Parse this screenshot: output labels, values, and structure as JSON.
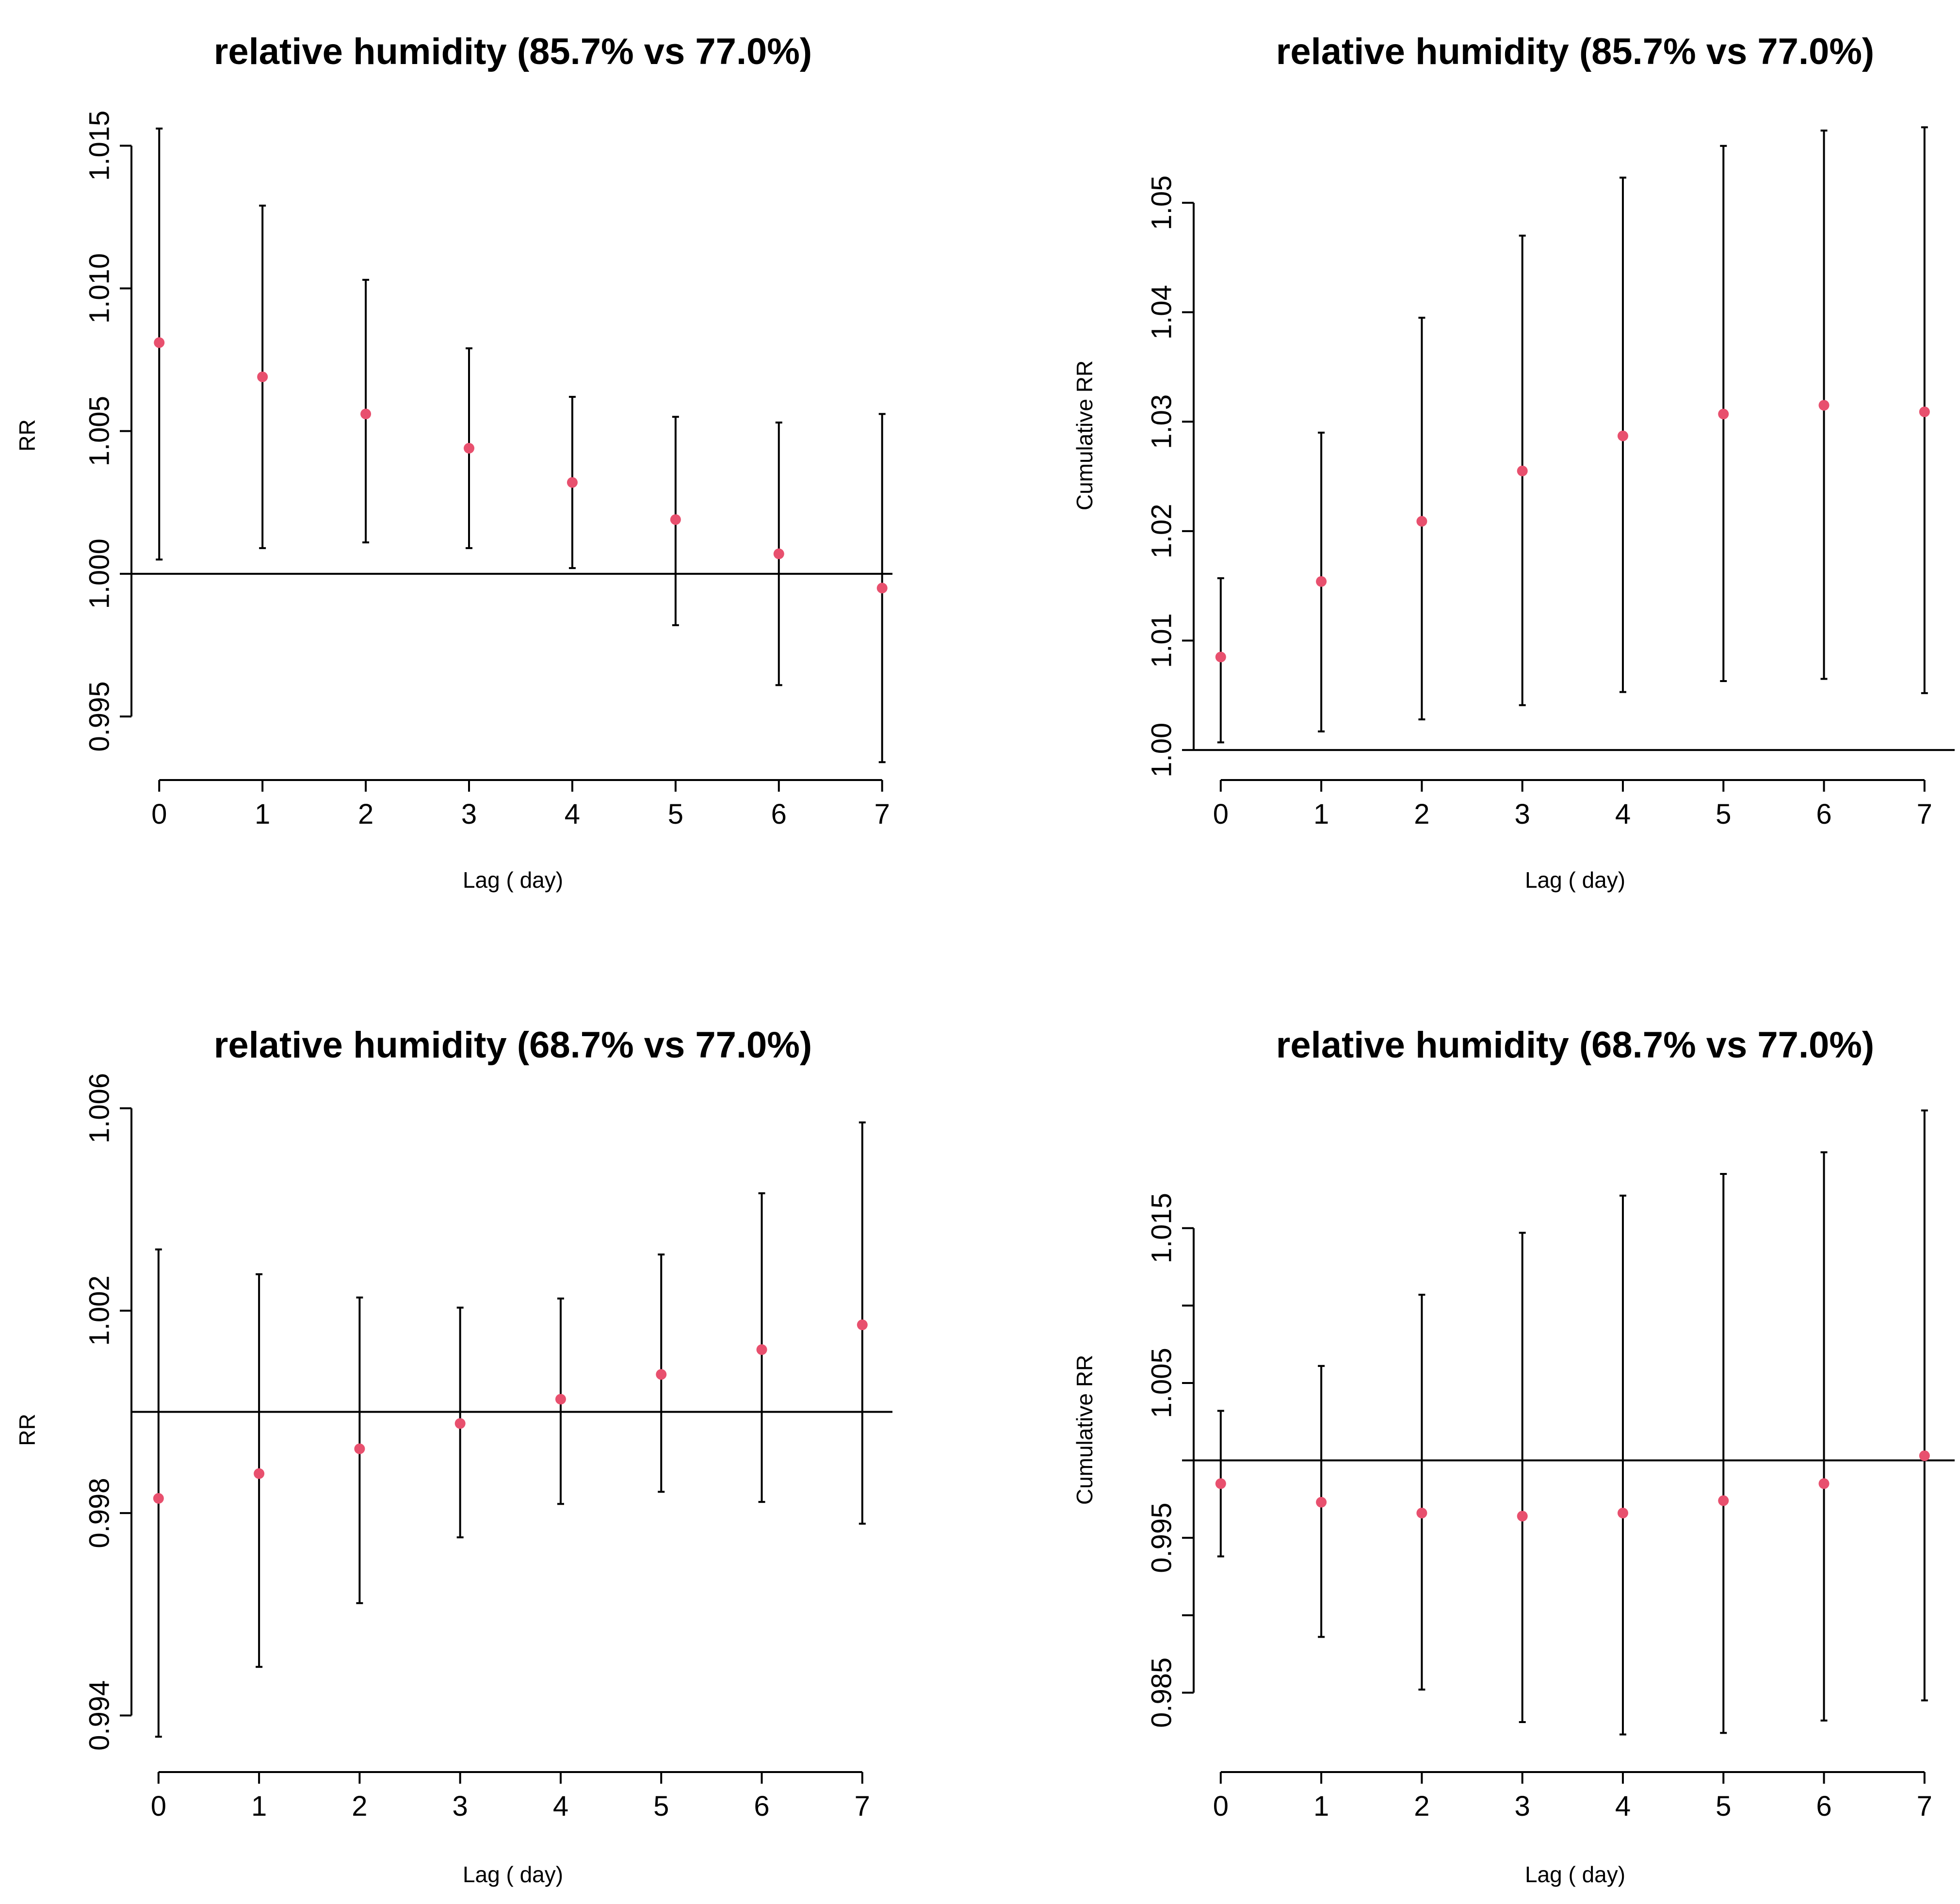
{
  "colors": {
    "point": "#e8506e",
    "line": "#000000",
    "background": "#ffffff"
  },
  "chart_data": [
    {
      "type": "scatter",
      "title": "relative humidity (85.7% vs 77.0%)",
      "xlabel": "Lag ( day)",
      "ylabel": "RR",
      "x": [
        0,
        1,
        2,
        3,
        4,
        5,
        6,
        7
      ],
      "values": [
        1.0081,
        1.0069,
        1.0056,
        1.0044,
        1.0032,
        1.0019,
        1.0007,
        0.9995
      ],
      "lower": [
        1.0005,
        1.0009,
        1.0011,
        1.0009,
        1.0002,
        0.9982,
        0.9961,
        0.9934
      ],
      "upper": [
        1.0156,
        1.0129,
        1.0103,
        1.0079,
        1.0062,
        1.0055,
        1.0053,
        1.0056
      ],
      "reference": 1.0,
      "xlim": [
        -0.25,
        7.1
      ],
      "ylim": [
        0.99325,
        1.01645
      ],
      "yticks": [
        0.995,
        1.0,
        1.005,
        1.01,
        1.015
      ],
      "ytick_labels": [
        "0.995",
        "1.000",
        "1.005",
        "1.010",
        "1.015"
      ]
    },
    {
      "type": "scatter",
      "title": "relative humidity (85.7% vs 77.0%)",
      "xlabel": "Lag ( day)",
      "ylabel": "Cumulative RR",
      "x": [
        0,
        1,
        2,
        3,
        4,
        5,
        6,
        7
      ],
      "values": [
        1.0085,
        1.0154,
        1.0209,
        1.0255,
        1.0287,
        1.0307,
        1.0315,
        1.0309
      ],
      "lower": [
        1.0007,
        1.0017,
        1.0028,
        1.0041,
        1.0053,
        1.0063,
        1.0065,
        1.0052
      ],
      "upper": [
        1.0157,
        1.029,
        1.0395,
        1.047,
        1.0523,
        1.0552,
        1.0566,
        1.0569
      ],
      "reference": 1.0,
      "xlim": [
        -0.25,
        7.3
      ],
      "ylim": [
        0.9985,
        1.059
      ],
      "yticks": [
        1.0,
        1.01,
        1.02,
        1.03,
        1.04,
        1.05
      ],
      "ytick_labels": [
        "1.00",
        "1.01",
        "1.02",
        "1.03",
        "1.04",
        "1.05"
      ]
    },
    {
      "type": "scatter",
      "title": "relative humidity (68.7% vs 77.0%)",
      "xlabel": "Lag ( day)",
      "ylabel": "RR",
      "x": [
        0,
        1,
        2,
        3,
        4,
        5,
        6,
        7
      ],
      "values": [
        0.99829,
        0.99878,
        0.99927,
        0.99977,
        1.00025,
        1.00074,
        1.00123,
        1.00172
      ],
      "lower": [
        0.99358,
        0.99496,
        0.99622,
        0.99752,
        0.99818,
        0.99842,
        0.99822,
        0.99779
      ],
      "upper": [
        1.00321,
        1.00272,
        1.00226,
        1.00206,
        1.00224,
        1.00311,
        1.00432,
        1.00572
      ],
      "reference": 1.0,
      "xlim": [
        -0.25,
        7.3
      ],
      "ylim": [
        0.99315,
        1.00614
      ],
      "yticks": [
        0.994,
        0.998,
        1.002,
        1.006
      ],
      "ytick_labels": [
        "0.994",
        "0.998",
        "1.002",
        "1.006"
      ]
    },
    {
      "type": "scatter",
      "title": "relative humidity (68.7% vs 77.0%)",
      "xlabel": "Lag ( day)",
      "ylabel": "Cumulative RR",
      "x": [
        0,
        1,
        2,
        3,
        4,
        5,
        6,
        7
      ],
      "values": [
        0.9985,
        0.9973,
        0.9966,
        0.9964,
        0.9966,
        0.9974,
        0.9985,
        1.0003
      ],
      "lower": [
        0.9938,
        0.9886,
        0.9852,
        0.9831,
        0.9823,
        0.9824,
        0.9832,
        0.9845
      ],
      "upper": [
        1.0032,
        1.0061,
        1.0107,
        1.0147,
        1.0171,
        1.0185,
        1.0199,
        1.0226
      ],
      "reference": 1.0,
      "xlim": [
        -0.25,
        7.3
      ],
      "ylim": [
        0.98075,
        1.0232
      ],
      "yticks": [
        0.985,
        0.99,
        0.995,
        1.0,
        1.005,
        1.01,
        1.015
      ],
      "ytick_labels": [
        "0.985",
        "",
        "0.995",
        "",
        "1.005",
        "",
        "1.015"
      ]
    }
  ]
}
